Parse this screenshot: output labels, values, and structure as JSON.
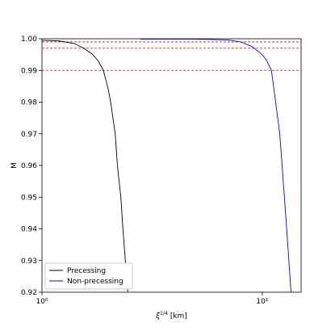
{
  "chart_data": {
    "type": "line",
    "xscale": "log",
    "xlabel": [
      "ξ",
      "1/4",
      "[km]"
    ],
    "ylabel": "M",
    "xlim": [
      1,
      15
    ],
    "ylim": [
      0.92,
      1.0
    ],
    "xticks": [
      {
        "value": 1,
        "label": "10⁰"
      },
      {
        "value": 10,
        "label": "10¹"
      }
    ],
    "yticks": [
      0.92,
      0.93,
      0.94,
      0.95,
      0.96,
      0.97,
      0.98,
      0.99,
      {
        "value": 1.0,
        "label": "1.00"
      }
    ],
    "hlines": [
      {
        "y": 0.999,
        "color": "#ff0000"
      },
      {
        "y": 0.997,
        "color": "#ff0000"
      },
      {
        "y": 0.99,
        "color": "#ff0000"
      }
    ],
    "legend": "lower left",
    "series": [
      {
        "name": "Precessing",
        "color": "#000000",
        "x": [
          1,
          1.2,
          1.4,
          1.55,
          1.7,
          1.8,
          1.9,
          2.0,
          2.05,
          2.15,
          2.2,
          2.28,
          2.33,
          2.39,
          2.45
        ],
        "values": [
          0.9995,
          0.9993,
          0.9985,
          0.997,
          0.995,
          0.993,
          0.99,
          0.984,
          0.98,
          0.97,
          0.96,
          0.95,
          0.94,
          0.93,
          0.92
        ]
      },
      {
        "name": "Non-precessing",
        "color": "#0000ff",
        "x": [
          2.8,
          5,
          7,
          8,
          9,
          10,
          10.5,
          11,
          11.5,
          12,
          12.3,
          12.6,
          12.9,
          13.2,
          13.5
        ],
        "values": [
          0.9999,
          0.9999,
          0.9996,
          0.999,
          0.9975,
          0.995,
          0.993,
          0.99,
          0.98,
          0.97,
          0.96,
          0.95,
          0.94,
          0.93,
          0.92
        ]
      }
    ]
  }
}
